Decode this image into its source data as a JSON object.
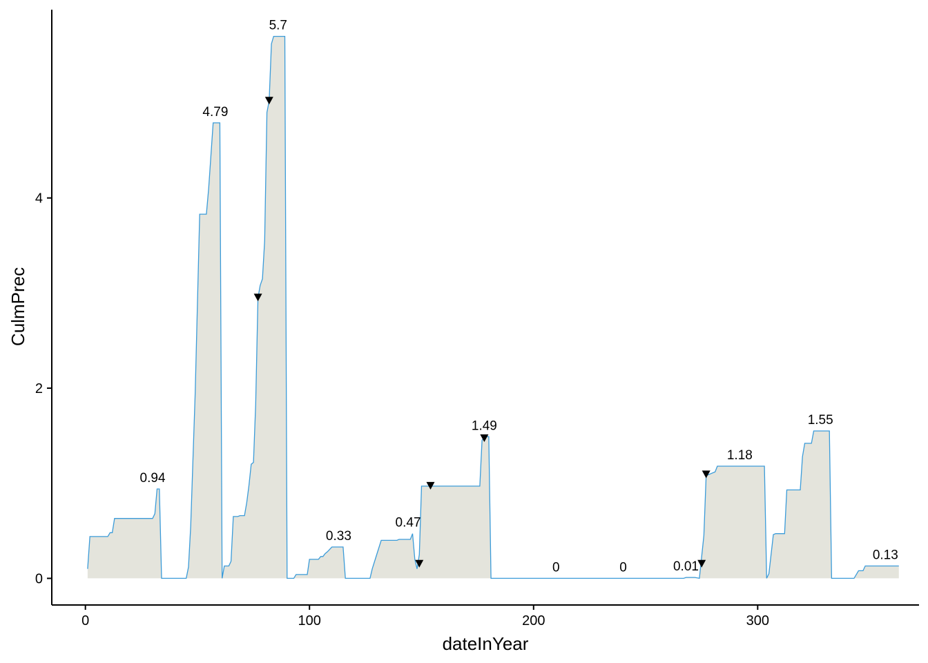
{
  "chart_data": {
    "type": "area",
    "xlabel": "dateInYear",
    "ylabel": "CulmPrec",
    "xlim": [
      -15,
      372
    ],
    "ylim": [
      -0.28,
      5.98
    ],
    "x_ticks": [
      0,
      100,
      200,
      300
    ],
    "y_ticks": [
      0,
      2,
      4
    ],
    "grid": false,
    "colors": {
      "line": "#3a9bd9",
      "fill": "#e4e4dc",
      "marker": "#000000"
    },
    "series": [
      {
        "values": [
          [
            1,
            0.1
          ],
          [
            2,
            0.44
          ],
          [
            8,
            0.44
          ],
          [
            10,
            0.44
          ],
          [
            11,
            0.48
          ],
          [
            12,
            0.48
          ],
          [
            13,
            0.63
          ],
          [
            30,
            0.63
          ],
          [
            31,
            0.68
          ],
          [
            32,
            0.94
          ],
          [
            33,
            0.94
          ],
          [
            34,
            0.0
          ],
          [
            45,
            0.0
          ],
          [
            46,
            0.12
          ],
          [
            47,
            0.55
          ],
          [
            49,
            1.95
          ],
          [
            51,
            3.83
          ],
          [
            54,
            3.83
          ],
          [
            55,
            4.1
          ],
          [
            57,
            4.79
          ],
          [
            60,
            4.79
          ],
          [
            61,
            0.0
          ],
          [
            62,
            0.13
          ],
          [
            64,
            0.13
          ],
          [
            65,
            0.18
          ],
          [
            66,
            0.65
          ],
          [
            68,
            0.65
          ],
          [
            69,
            0.66
          ],
          [
            71,
            0.66
          ],
          [
            72,
            0.8
          ],
          [
            73,
            0.98
          ],
          [
            74,
            1.2
          ],
          [
            75,
            1.22
          ],
          [
            76,
            1.83
          ],
          [
            77,
            2.95
          ],
          [
            78,
            3.08
          ],
          [
            79,
            3.15
          ],
          [
            80,
            3.55
          ],
          [
            81,
            4.9
          ],
          [
            82,
            5.02
          ],
          [
            83,
            5.62
          ],
          [
            84,
            5.7
          ],
          [
            89,
            5.7
          ],
          [
            90,
            0.0
          ],
          [
            93,
            0.0
          ],
          [
            94,
            0.04
          ],
          [
            99,
            0.04
          ],
          [
            100,
            0.2
          ],
          [
            104,
            0.2
          ],
          [
            105,
            0.23
          ],
          [
            106,
            0.23
          ],
          [
            107,
            0.26
          ],
          [
            108,
            0.28
          ],
          [
            110,
            0.33
          ],
          [
            115,
            0.33
          ],
          [
            116,
            0.0
          ],
          [
            127,
            0.0
          ],
          [
            128,
            0.1
          ],
          [
            130,
            0.25
          ],
          [
            132,
            0.4
          ],
          [
            139,
            0.4
          ],
          [
            140,
            0.41
          ],
          [
            145,
            0.41
          ],
          [
            146,
            0.47
          ],
          [
            147,
            0.2
          ],
          [
            148,
            0.1
          ],
          [
            149,
            0.25
          ],
          [
            150,
            0.97
          ],
          [
            176,
            0.97
          ],
          [
            177,
            1.45
          ],
          [
            178,
            1.49
          ],
          [
            180,
            1.49
          ],
          [
            181,
            0.0
          ],
          [
            267,
            0.0
          ],
          [
            268,
            0.01
          ],
          [
            272,
            0.01
          ],
          [
            274,
            0.0
          ],
          [
            276,
            0.45
          ],
          [
            277,
            1.08
          ],
          [
            281,
            1.12
          ],
          [
            282,
            1.18
          ],
          [
            303,
            1.18
          ],
          [
            304,
            0.0
          ],
          [
            305,
            0.05
          ],
          [
            307,
            0.46
          ],
          [
            308,
            0.47
          ],
          [
            312,
            0.47
          ],
          [
            313,
            0.93
          ],
          [
            319,
            0.93
          ],
          [
            320,
            1.28
          ],
          [
            321,
            1.42
          ],
          [
            324,
            1.42
          ],
          [
            325,
            1.55
          ],
          [
            332,
            1.55
          ],
          [
            333,
            0.0
          ],
          [
            343,
            0.0
          ],
          [
            345,
            0.08
          ],
          [
            347,
            0.08
          ],
          [
            348,
            0.13
          ],
          [
            363,
            0.13
          ]
        ]
      }
    ],
    "annotations": [
      {
        "x": 30,
        "y": 0.94,
        "text": "0.94"
      },
      {
        "x": 58,
        "y": 4.79,
        "text": "4.79"
      },
      {
        "x": 86,
        "y": 5.7,
        "text": "5.7"
      },
      {
        "x": 113,
        "y": 0.33,
        "text": "0.33"
      },
      {
        "x": 144,
        "y": 0.47,
        "text": "0.47"
      },
      {
        "x": 178,
        "y": 1.49,
        "text": "1.49"
      },
      {
        "x": 210,
        "y": 0,
        "text": "0"
      },
      {
        "x": 240,
        "y": 0,
        "text": "0"
      },
      {
        "x": 268,
        "y": 0.01,
        "text": "0.01"
      },
      {
        "x": 292,
        "y": 1.18,
        "text": "1.18"
      },
      {
        "x": 328,
        "y": 1.55,
        "text": "1.55"
      },
      {
        "x": 357,
        "y": 0.13,
        "text": "0.13"
      }
    ],
    "markers": [
      {
        "x": 77,
        "y": 2.95
      },
      {
        "x": 82,
        "y": 5.02
      },
      {
        "x": 149,
        "y": 0.15
      },
      {
        "x": 154,
        "y": 0.97
      },
      {
        "x": 178,
        "y": 1.47
      },
      {
        "x": 275,
        "y": 0.15
      },
      {
        "x": 277,
        "y": 1.09
      }
    ]
  }
}
